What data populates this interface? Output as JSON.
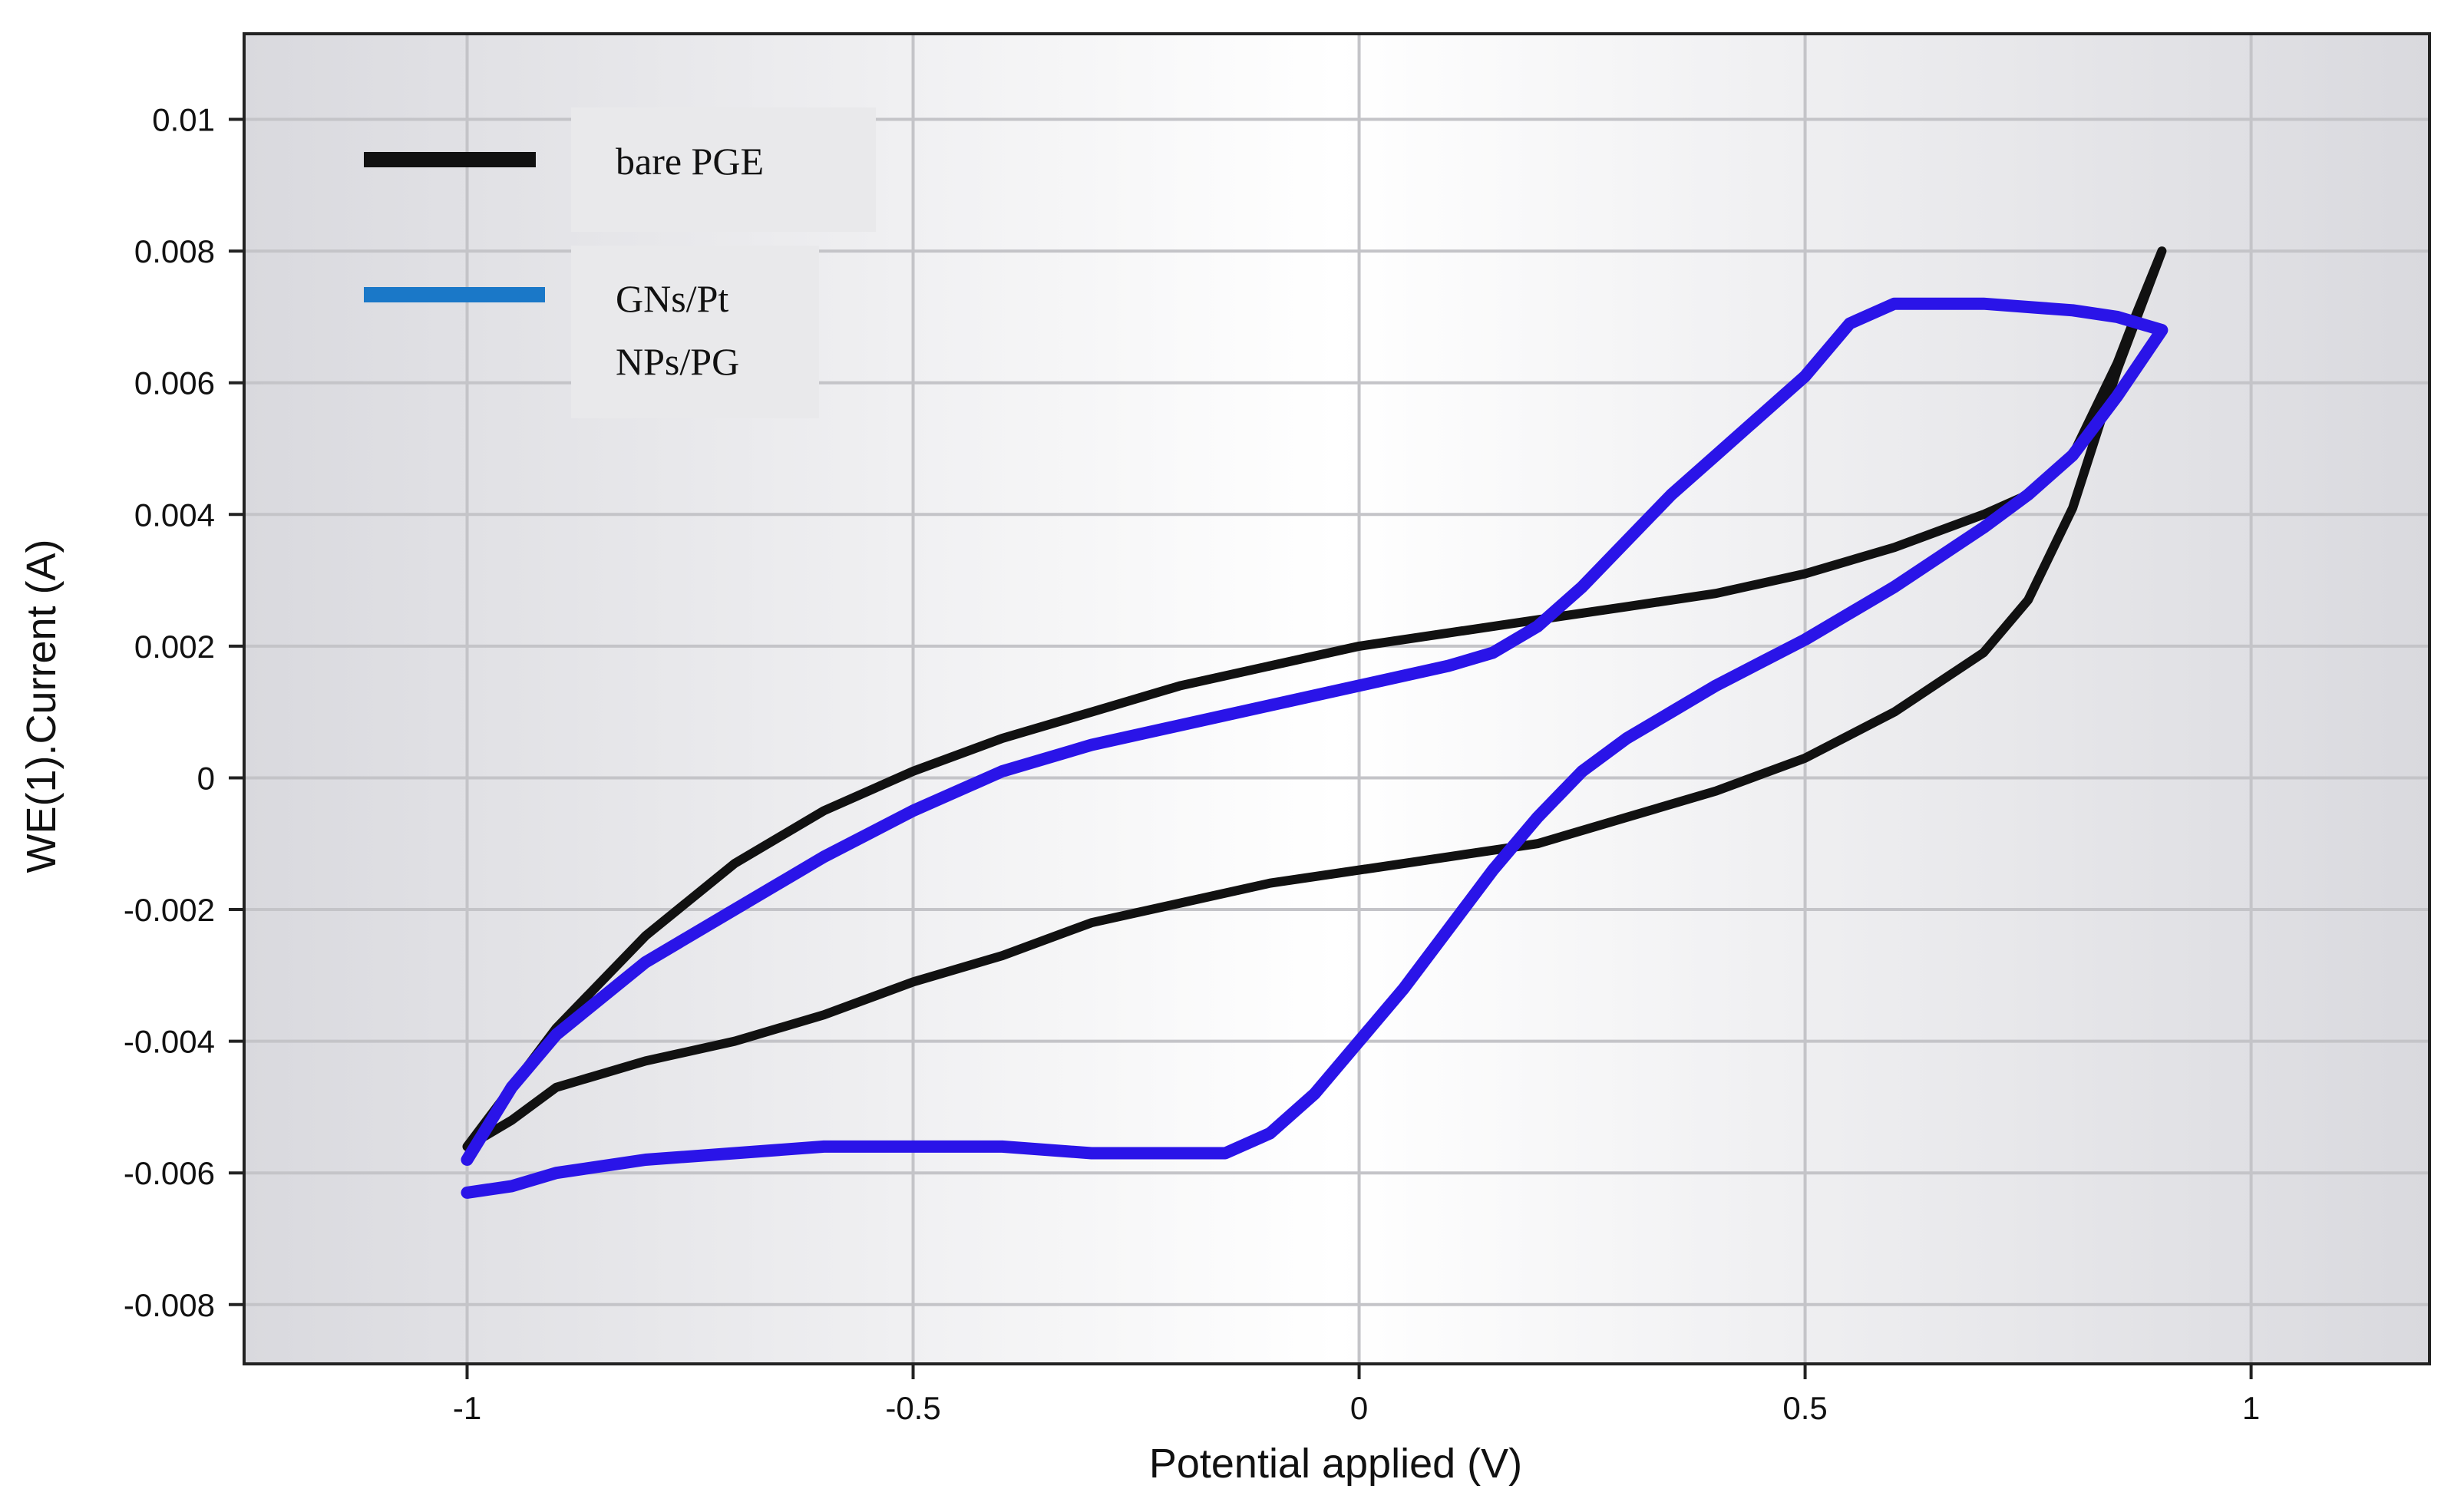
{
  "chart_data": {
    "type": "line",
    "xlabel": "Potential applied (V)",
    "ylabel": "WE(1).Current (A)",
    "xlim": [
      -1.25,
      1.2
    ],
    "ylim": [
      -0.0089,
      0.0113
    ],
    "xticks": [
      -1,
      -0.5,
      0,
      0.5,
      1
    ],
    "xtick_labels": [
      "-1",
      "-0.5",
      "0",
      "0.5",
      "1"
    ],
    "yticks": [
      -0.008,
      -0.006,
      -0.004,
      -0.002,
      0,
      0.002,
      0.004,
      0.006,
      0.008,
      0.01
    ],
    "ytick_labels": [
      "-0.008",
      "-0.006",
      "-0.004",
      "-0.002",
      "0",
      "0.002",
      "0.004",
      "0.006",
      "0.008",
      "0.01"
    ],
    "grid": true,
    "legend_position": "top-left",
    "series": [
      {
        "name": "bare PGE",
        "color": "#111111",
        "x": [
          -1.0,
          -0.95,
          -0.9,
          -0.8,
          -0.7,
          -0.6,
          -0.5,
          -0.4,
          -0.3,
          -0.2,
          -0.1,
          0.0,
          0.1,
          0.2,
          0.3,
          0.4,
          0.5,
          0.6,
          0.7,
          0.75,
          0.8,
          0.85,
          0.9,
          0.87,
          0.85,
          0.8,
          0.75,
          0.7,
          0.6,
          0.5,
          0.4,
          0.3,
          0.2,
          0.1,
          0.0,
          -0.1,
          -0.2,
          -0.3,
          -0.4,
          -0.5,
          -0.6,
          -0.7,
          -0.8,
          -0.9,
          -0.95,
          -1.0
        ],
        "y": [
          -0.0056,
          -0.0052,
          -0.0047,
          -0.0043,
          -0.004,
          -0.0036,
          -0.0031,
          -0.0027,
          -0.0022,
          -0.0019,
          -0.0016,
          -0.0014,
          -0.0012,
          -0.001,
          -0.0006,
          -0.0002,
          0.0003,
          0.001,
          0.0019,
          0.0027,
          0.0041,
          0.0062,
          0.008,
          0.007,
          0.0063,
          0.0049,
          0.0043,
          0.004,
          0.0035,
          0.0031,
          0.0028,
          0.0026,
          0.0024,
          0.0022,
          0.002,
          0.0017,
          0.0014,
          0.001,
          0.0006,
          0.0001,
          -0.0005,
          -0.0013,
          -0.0024,
          -0.0038,
          -0.0047,
          -0.0056
        ]
      },
      {
        "name": "GNs/Pt NPs/PG",
        "color": "#2a14e8",
        "x": [
          -1.0,
          -0.95,
          -0.9,
          -0.8,
          -0.7,
          -0.6,
          -0.5,
          -0.4,
          -0.3,
          -0.2,
          -0.15,
          -0.1,
          -0.05,
          0.0,
          0.05,
          0.1,
          0.15,
          0.2,
          0.25,
          0.3,
          0.35,
          0.4,
          0.5,
          0.6,
          0.7,
          0.75,
          0.8,
          0.85,
          0.9,
          0.85,
          0.8,
          0.7,
          0.6,
          0.55,
          0.5,
          0.45,
          0.4,
          0.35,
          0.3,
          0.25,
          0.2,
          0.15,
          0.1,
          0.0,
          -0.1,
          -0.2,
          -0.3,
          -0.4,
          -0.5,
          -0.6,
          -0.7,
          -0.8,
          -0.9,
          -0.95,
          -1.0
        ],
        "y": [
          -0.0063,
          -0.0062,
          -0.006,
          -0.0058,
          -0.0057,
          -0.0056,
          -0.0056,
          -0.0056,
          -0.0057,
          -0.0057,
          -0.0057,
          -0.0054,
          -0.0048,
          -0.004,
          -0.0032,
          -0.0023,
          -0.0014,
          -0.0006,
          0.0001,
          0.0006,
          0.001,
          0.0014,
          0.0021,
          0.0029,
          0.0038,
          0.0043,
          0.0049,
          0.0058,
          0.0068,
          0.007,
          0.0071,
          0.0072,
          0.0072,
          0.0069,
          0.0061,
          0.0055,
          0.0049,
          0.0043,
          0.0036,
          0.0029,
          0.0023,
          0.0019,
          0.0017,
          0.0014,
          0.0011,
          0.0008,
          0.0005,
          0.0001,
          -0.0005,
          -0.0012,
          -0.002,
          -0.0028,
          -0.0039,
          -0.0047,
          -0.0058
        ]
      }
    ]
  }
}
